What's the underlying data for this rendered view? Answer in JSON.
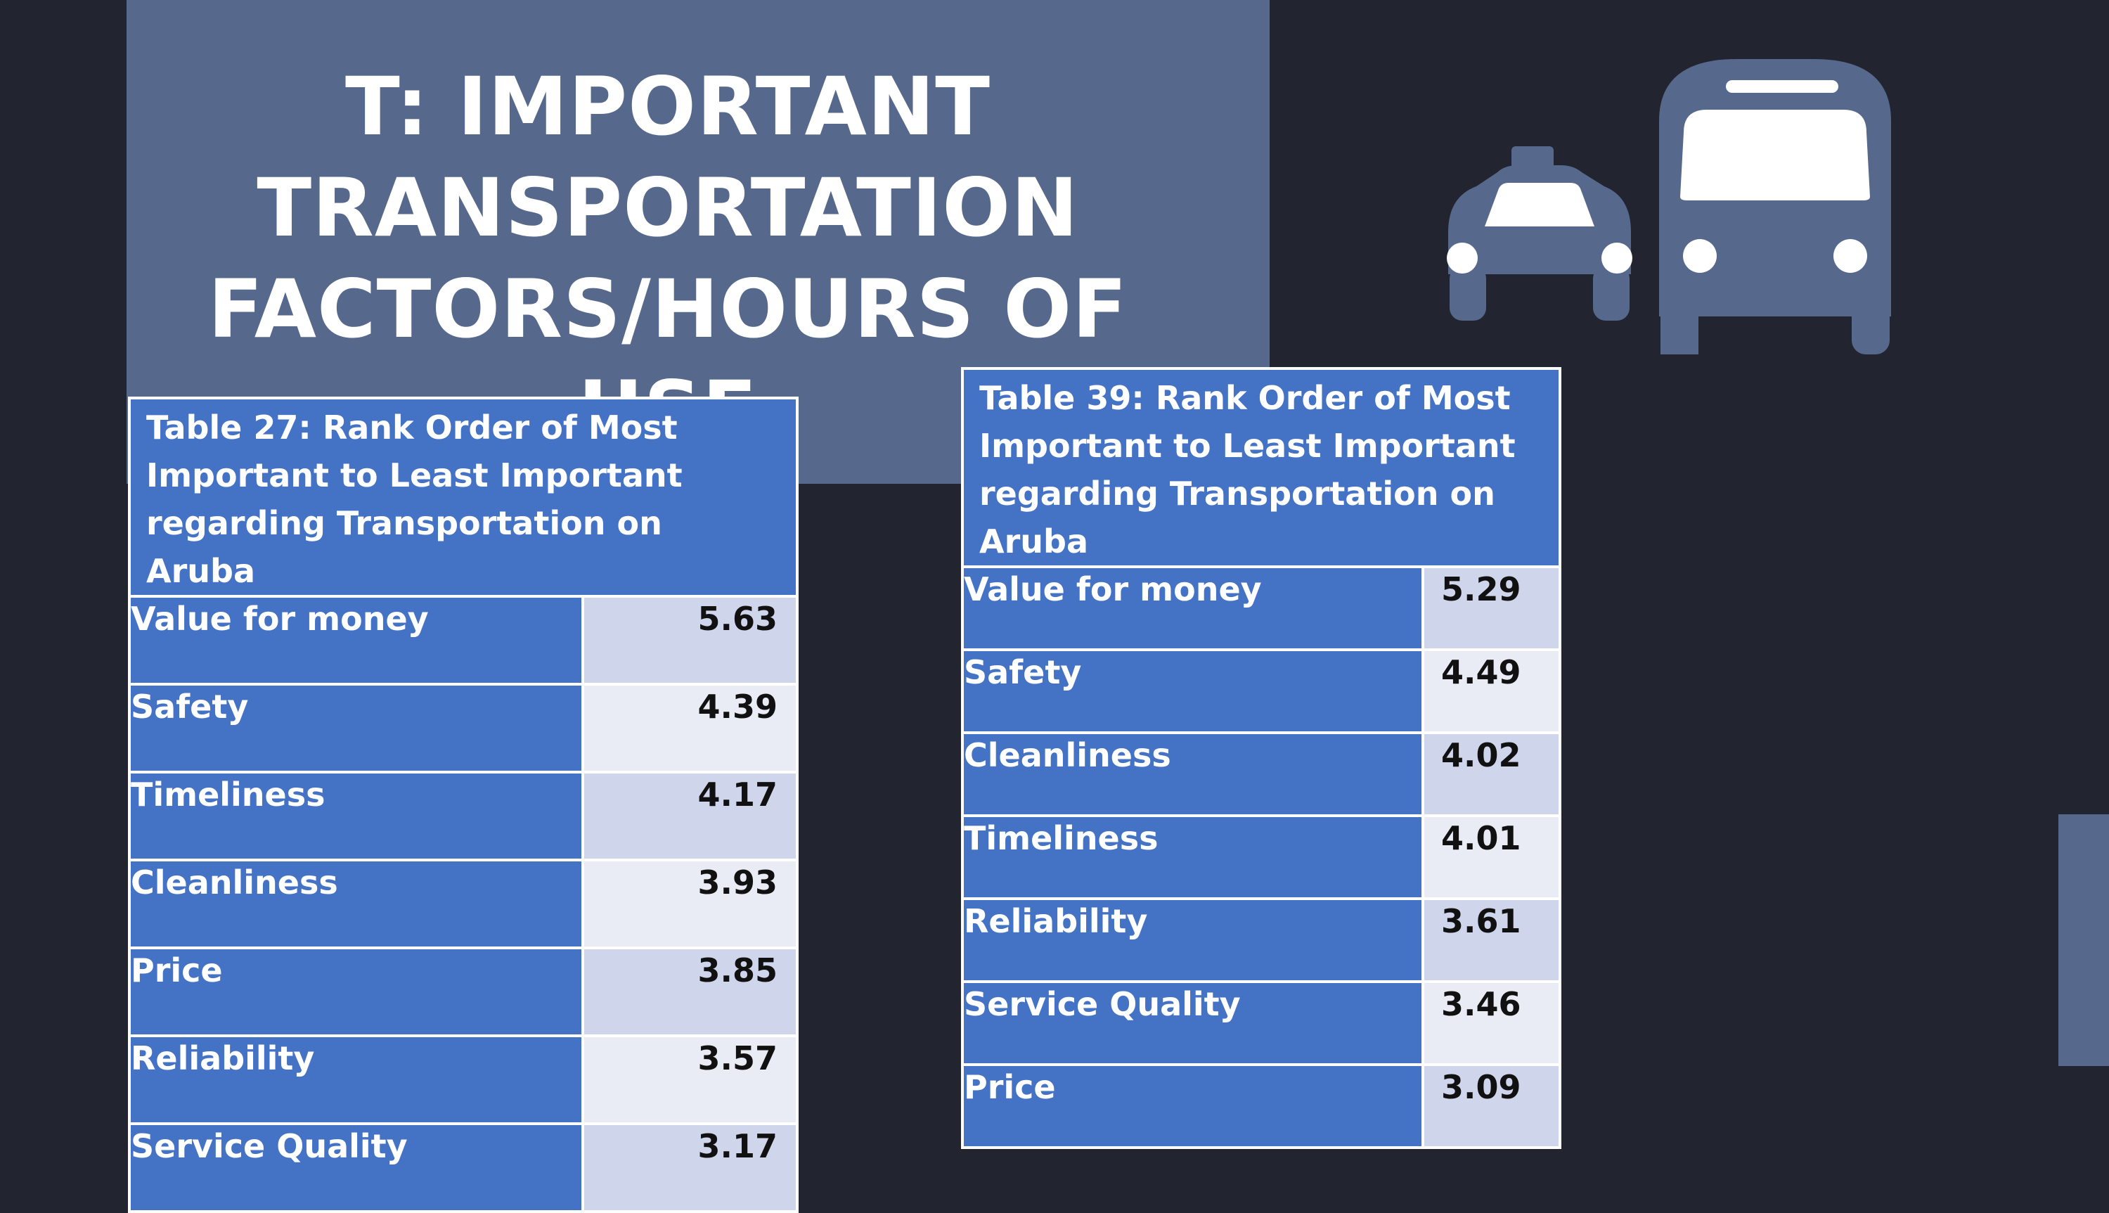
{
  "slide": {
    "title": "T: IMPORTANT TRANSPORTATION FACTORS/HOURS OF USE",
    "colors": {
      "background": "#22252f",
      "panel": "#56698c",
      "table_header": "#4472c4",
      "cell_dark": "#cfd5ea",
      "cell_light": "#e9ebf5"
    },
    "icons": [
      "taxi-icon",
      "bus-icon"
    ]
  },
  "table27": {
    "caption": "Table 27: Rank Order of Most Important to Least Important regarding Transportation on Aruba",
    "rows": [
      {
        "label": "Value for money",
        "value": "5.63"
      },
      {
        "label": "Safety",
        "value": "4.39"
      },
      {
        "label": "Timeliness",
        "value": "4.17"
      },
      {
        "label": "Cleanliness",
        "value": "3.93"
      },
      {
        "label": "Price",
        "value": "3.85"
      },
      {
        "label": "Reliability",
        "value": "3.57"
      },
      {
        "label": "Service Quality",
        "value": "3.17"
      }
    ]
  },
  "table39": {
    "caption": "Table 39: Rank Order of Most Important to Least Important regarding Transportation on Aruba",
    "rows": [
      {
        "label": "Value for money",
        "value": "5.29"
      },
      {
        "label": "Safety",
        "value": "4.49"
      },
      {
        "label": "Cleanliness",
        "value": "4.02"
      },
      {
        "label": "Timeliness",
        "value": "4.01"
      },
      {
        "label": "Reliability",
        "value": "3.61"
      },
      {
        "label": "Service Quality",
        "value": "3.46"
      },
      {
        "label": "Price",
        "value": "3.09"
      }
    ]
  }
}
